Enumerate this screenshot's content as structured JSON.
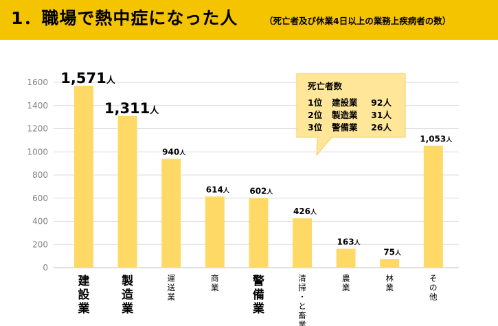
{
  "header": {
    "title": "1．職場で熱中症になった人",
    "subtitle": "（死亡者及び休業4日以上の業務上疾病者の数）"
  },
  "callout": {
    "title": "死亡者数",
    "rows": [
      {
        "rank": "1位",
        "industry": "建設業",
        "count": "92人"
      },
      {
        "rank": "2位",
        "industry": "製造業",
        "count": "31人"
      },
      {
        "rank": "3位",
        "industry": "警備業",
        "count": "26人"
      }
    ]
  },
  "chart_data": {
    "type": "bar",
    "title": "",
    "xlabel": "",
    "ylabel": "",
    "ylim": [
      0,
      1600
    ],
    "yticks": [
      0,
      200,
      400,
      600,
      800,
      1000,
      1200,
      1400,
      1600
    ],
    "grid": true,
    "unit": "人",
    "categories": [
      "建設業",
      "製造業",
      "運送業",
      "商業",
      "警備業",
      "清掃・と畜業",
      "農業",
      "林業",
      "その他"
    ],
    "values": [
      1571,
      1311,
      940,
      614,
      602,
      426,
      163,
      75,
      1053
    ],
    "value_labels": [
      "1,571",
      "1,311",
      "940",
      "614",
      "602",
      "426",
      "163",
      "75",
      "1,053"
    ],
    "bar_color": "#FFD966",
    "emphasized": [
      "建設業",
      "製造業",
      "警備業"
    ]
  }
}
